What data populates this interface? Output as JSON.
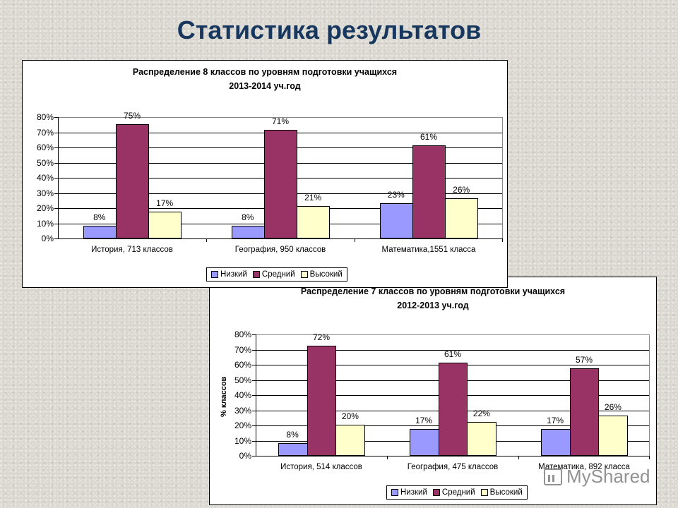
{
  "page": {
    "title": "Статистика результатов",
    "watermark": "MyShared"
  },
  "legend": {
    "items": [
      {
        "label": "Низкий",
        "color": "#9999ff"
      },
      {
        "label": "Средний",
        "color": "#993366"
      },
      {
        "label": "Высокий",
        "color": "#ffffcc"
      }
    ]
  },
  "chart_data": [
    {
      "type": "bar",
      "title": "Распределение 8 классов по уровням подготовки учащихся",
      "subtitle": "2013-2014 уч.год",
      "xlabel": "",
      "ylabel": "",
      "ylim": [
        0,
        80
      ],
      "yticks": [
        "0%",
        "10%",
        "20%",
        "30%",
        "40%",
        "50%",
        "60%",
        "70%",
        "80%"
      ],
      "grid": true,
      "legend_position": "bottom-right",
      "categories": [
        "История, 713 классов",
        "География, 950 классов",
        "Математика,1551 класса"
      ],
      "series": [
        {
          "name": "Низкий",
          "values": [
            8,
            8,
            23
          ],
          "labels": [
            "8%",
            "8%",
            "23%"
          ],
          "color": "#9999ff"
        },
        {
          "name": "Средний",
          "values": [
            75,
            71,
            61
          ],
          "labels": [
            "75%",
            "71%",
            "61%"
          ],
          "color": "#993366"
        },
        {
          "name": "Высокий",
          "values": [
            17,
            21,
            26
          ],
          "labels": [
            "17%",
            "21%",
            "26%"
          ],
          "color": "#ffffcc"
        }
      ]
    },
    {
      "type": "bar",
      "title": "Распределение  7  классов по уровням подготовки учащихся",
      "subtitle": "2012-2013 уч.год",
      "xlabel": "",
      "ylabel": "% классов",
      "ylim": [
        0,
        80
      ],
      "yticks": [
        "0%",
        "10%",
        "20%",
        "30%",
        "40%",
        "50%",
        "60%",
        "70%",
        "80%"
      ],
      "grid": true,
      "legend_position": "bottom-right",
      "categories": [
        "История, 514 классов",
        "География, 475 классов",
        "Математика, 892 класса"
      ],
      "series": [
        {
          "name": "Низкий",
          "values": [
            8,
            17,
            17
          ],
          "labels": [
            "8%",
            "17%",
            "17%"
          ],
          "color": "#9999ff"
        },
        {
          "name": "Средний",
          "values": [
            72,
            61,
            57
          ],
          "labels": [
            "72%",
            "61%",
            "57%"
          ],
          "color": "#993366"
        },
        {
          "name": "Высокий",
          "values": [
            20,
            22,
            26
          ],
          "labels": [
            "20%",
            "22%",
            "26%"
          ],
          "color": "#ffffcc"
        }
      ]
    }
  ]
}
